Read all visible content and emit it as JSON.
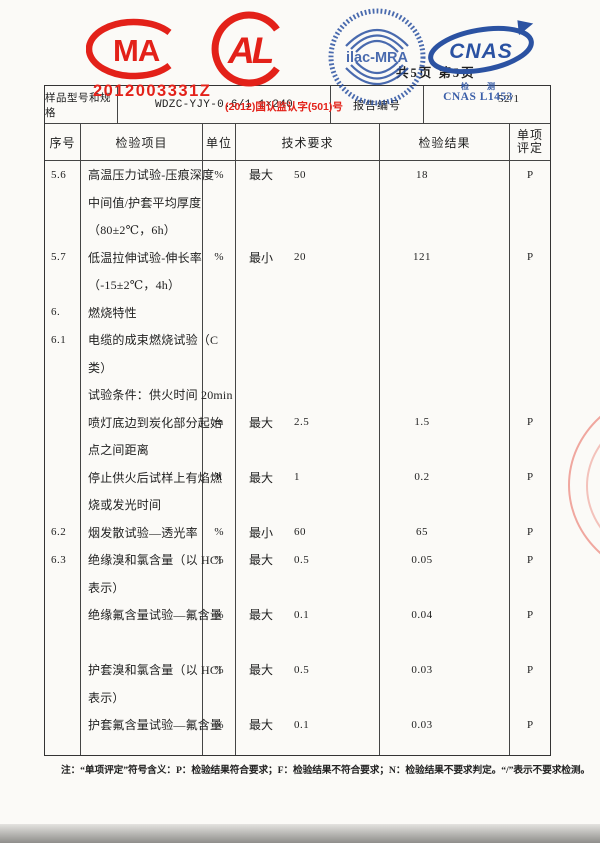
{
  "page": {
    "pagination": "共5页 第5页",
    "note": "注：“单项评定”符号含义：P：检验结果符合要求；F：检验结果不符合要求；N：检验结果不要求判定。“/”表示不要求检测。"
  },
  "stamps": {
    "cma_letters": "MA",
    "al_letters": "AL",
    "ilac_text": "ilac-MRA",
    "cnas_letters": "CNAS",
    "cma_cert_no": "2012003331Z",
    "cma_approval_no": "(2012)国认监认字(501)号",
    "cnas_mark_line1": "检 测",
    "cnas_mark_line2": "CNAS L1453",
    "report_no_fragment": "52/1",
    "red": "#e32119",
    "blue": "#2b52a2"
  },
  "info_row": {
    "label_model": "样品型号和规格",
    "value_model": "WDZC-YJY-0.6/1 1×240",
    "label_report_no": "报告编号"
  },
  "table": {
    "headers": [
      "序号",
      "检验项目",
      "单位",
      "技术要求",
      "检验结果"
    ],
    "verdict_header": {
      "line1": "单项",
      "line2": "评定"
    },
    "rows": [
      {
        "no": "5.6",
        "item": "高温压力试验-压痕深度",
        "unit": "%",
        "req_label": "最大",
        "req_value": "50",
        "result": "18",
        "verdict": "P"
      },
      {
        "no": "",
        "item": "中间值/护套平均厚度",
        "unit": "",
        "req_label": "",
        "req_value": "",
        "result": "",
        "verdict": ""
      },
      {
        "no": "",
        "item": "（80±2℃，6h）",
        "unit": "",
        "req_label": "",
        "req_value": "",
        "result": "",
        "verdict": ""
      },
      {
        "no": "5.7",
        "item": "低温拉伸试验-伸长率",
        "unit": "%",
        "req_label": "最小",
        "req_value": "20",
        "result": "121",
        "verdict": "P"
      },
      {
        "no": "",
        "item": "（-15±2℃，4h）",
        "unit": "",
        "req_label": "",
        "req_value": "",
        "result": "",
        "verdict": ""
      },
      {
        "no": "6.",
        "item": "燃烧特性",
        "unit": "",
        "req_label": "",
        "req_value": "",
        "result": "",
        "verdict": ""
      },
      {
        "no": "6.1",
        "item": "电缆的成束燃烧试验（C",
        "unit": "",
        "req_label": "",
        "req_value": "",
        "result": "",
        "verdict": ""
      },
      {
        "no": "",
        "item": "类）",
        "unit": "",
        "req_label": "",
        "req_value": "",
        "result": "",
        "verdict": ""
      },
      {
        "no": "",
        "item": "试验条件：供火时间 20min",
        "unit": "",
        "req_label": "",
        "req_value": "",
        "result": "",
        "verdict": ""
      },
      {
        "no": "",
        "item": "喷灯底边到炭化部分起始",
        "unit": "m",
        "req_label": "最大",
        "req_value": "2.5",
        "result": "1.5",
        "verdict": "P"
      },
      {
        "no": "",
        "item": "点之间距离",
        "unit": "",
        "req_label": "",
        "req_value": "",
        "result": "",
        "verdict": ""
      },
      {
        "no": "",
        "item": "停止供火后试样上有焰燃",
        "unit": "h",
        "req_label": "最大",
        "req_value": "1",
        "result": "0.2",
        "verdict": "P"
      },
      {
        "no": "",
        "item": "烧或发光时间",
        "unit": "",
        "req_label": "",
        "req_value": "",
        "result": "",
        "verdict": ""
      },
      {
        "no": "6.2",
        "item": "烟发散试验—透光率",
        "unit": "%",
        "req_label": "最小",
        "req_value": "60",
        "result": "65",
        "verdict": "P"
      },
      {
        "no": "6.3",
        "item": "绝缘溴和氯含量（以 HCl",
        "unit": "%",
        "req_label": "最大",
        "req_value": "0.5",
        "result": "0.05",
        "verdict": "P"
      },
      {
        "no": "",
        "item": "表示）",
        "unit": "",
        "req_label": "",
        "req_value": "",
        "result": "",
        "verdict": ""
      },
      {
        "no": "",
        "item": "绝缘氟含量试验—氟含量",
        "unit": "%",
        "req_label": "最大",
        "req_value": "0.1",
        "result": "0.04",
        "verdict": "P"
      },
      {
        "no": "",
        "item": "",
        "unit": "",
        "req_label": "",
        "req_value": "",
        "result": "",
        "verdict": ""
      },
      {
        "no": "",
        "item": "护套溴和氯含量（以 HCl",
        "unit": "%",
        "req_label": "最大",
        "req_value": "0.5",
        "result": "0.03",
        "verdict": "P"
      },
      {
        "no": "",
        "item": "表示）",
        "unit": "",
        "req_label": "",
        "req_value": "",
        "result": "",
        "verdict": ""
      },
      {
        "no": "",
        "item": "护套氟含量试验—氟含量",
        "unit": "%",
        "req_label": "最大",
        "req_value": "0.1",
        "result": "0.03",
        "verdict": "P"
      }
    ]
  }
}
